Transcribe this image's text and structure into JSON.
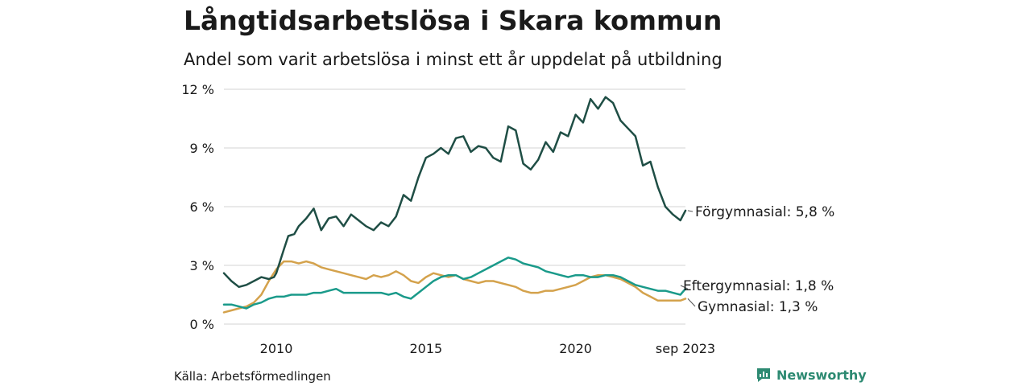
{
  "header": {
    "title": "Långtidsarbetslösa i Skara kommun",
    "subtitle": "Andel som varit arbetslösa i minst ett år uppdelat på utbildning"
  },
  "footer": {
    "source": "Källa: Arbetsförmedlingen",
    "brand": "Newsworthy"
  },
  "colors": {
    "forgymnasial": "#1f4e45",
    "eftergymnasial": "#1a9a8a",
    "gymnasial": "#d4a24c",
    "grid": "#e2e2e2"
  },
  "chart_data": {
    "type": "line",
    "title": "Långtidsarbetslösa i Skara kommun",
    "subtitle": "Andel som varit arbetslösa i minst ett år uppdelat på utbildning",
    "xlabel": "",
    "ylabel": "",
    "ylim": [
      0,
      12
    ],
    "xlim": [
      2008.25,
      2023.67
    ],
    "y_ticks": [
      0,
      3,
      6,
      9,
      12
    ],
    "y_tick_labels": [
      "0 %",
      "3 %",
      "6 %",
      "9 %",
      "12 %"
    ],
    "x_ticks": [
      2010,
      2015,
      2020,
      2023.67
    ],
    "x_tick_labels": [
      "2010",
      "2015",
      "2020",
      "sep 2023"
    ],
    "grid": true,
    "series": [
      {
        "name": "Förgymnasial",
        "end_label": "Förgymnasial: 5,8 %",
        "x": [
          2008.25,
          2008.5,
          2008.75,
          2009.0,
          2009.25,
          2009.5,
          2009.75,
          2009.92,
          2010.0,
          2010.25,
          2010.4,
          2010.6,
          2010.75,
          2011.0,
          2011.25,
          2011.5,
          2011.75,
          2012.0,
          2012.25,
          2012.5,
          2012.75,
          2013.0,
          2013.25,
          2013.5,
          2013.75,
          2014.0,
          2014.25,
          2014.5,
          2014.75,
          2015.0,
          2015.25,
          2015.5,
          2015.75,
          2016.0,
          2016.25,
          2016.5,
          2016.75,
          2017.0,
          2017.25,
          2017.5,
          2017.75,
          2018.0,
          2018.25,
          2018.5,
          2018.75,
          2019.0,
          2019.25,
          2019.5,
          2019.75,
          2020.0,
          2020.25,
          2020.5,
          2020.75,
          2021.0,
          2021.25,
          2021.5,
          2021.75,
          2022.0,
          2022.25,
          2022.5,
          2022.75,
          2023.0,
          2023.25,
          2023.5,
          2023.67
        ],
        "values": [
          2.6,
          2.2,
          1.9,
          2.0,
          2.2,
          2.4,
          2.3,
          2.4,
          2.6,
          3.8,
          4.5,
          4.6,
          5.0,
          5.4,
          5.9,
          4.8,
          5.4,
          5.5,
          5.0,
          5.6,
          5.3,
          5.0,
          4.8,
          5.2,
          5.0,
          5.5,
          6.6,
          6.3,
          7.5,
          8.5,
          8.7,
          9.0,
          8.7,
          9.5,
          9.6,
          8.8,
          9.1,
          9.0,
          8.5,
          8.3,
          10.1,
          9.9,
          8.2,
          7.9,
          8.4,
          9.3,
          8.8,
          9.8,
          9.6,
          10.7,
          10.3,
          11.5,
          11.0,
          11.6,
          11.3,
          10.4,
          10.0,
          9.6,
          8.1,
          8.3,
          7.0,
          6.0,
          5.6,
          5.3,
          5.8
        ]
      },
      {
        "name": "Eftergymnasial",
        "end_label": "Eftergymnasial: 1,8 %",
        "x": [
          2008.25,
          2008.5,
          2008.75,
          2009.0,
          2009.25,
          2009.5,
          2009.75,
          2010.0,
          2010.25,
          2010.5,
          2010.75,
          2011.0,
          2011.25,
          2011.5,
          2011.75,
          2012.0,
          2012.25,
          2012.5,
          2012.75,
          2013.0,
          2013.25,
          2013.5,
          2013.75,
          2014.0,
          2014.25,
          2014.5,
          2014.75,
          2015.0,
          2015.25,
          2015.5,
          2015.75,
          2016.0,
          2016.25,
          2016.5,
          2016.75,
          2017.0,
          2017.25,
          2017.5,
          2017.75,
          2018.0,
          2018.25,
          2018.5,
          2018.75,
          2019.0,
          2019.25,
          2019.5,
          2019.75,
          2020.0,
          2020.25,
          2020.5,
          2020.75,
          2021.0,
          2021.25,
          2021.5,
          2021.75,
          2022.0,
          2022.25,
          2022.5,
          2022.75,
          2023.0,
          2023.25,
          2023.5,
          2023.67
        ],
        "values": [
          1.0,
          1.0,
          0.9,
          0.8,
          1.0,
          1.1,
          1.3,
          1.4,
          1.4,
          1.5,
          1.5,
          1.5,
          1.6,
          1.6,
          1.7,
          1.8,
          1.6,
          1.6,
          1.6,
          1.6,
          1.6,
          1.6,
          1.5,
          1.6,
          1.4,
          1.3,
          1.6,
          1.9,
          2.2,
          2.4,
          2.5,
          2.5,
          2.3,
          2.4,
          2.6,
          2.8,
          3.0,
          3.2,
          3.4,
          3.3,
          3.1,
          3.0,
          2.9,
          2.7,
          2.6,
          2.5,
          2.4,
          2.5,
          2.5,
          2.4,
          2.4,
          2.5,
          2.5,
          2.4,
          2.2,
          2.0,
          1.9,
          1.8,
          1.7,
          1.7,
          1.6,
          1.5,
          1.8
        ]
      },
      {
        "name": "Gymnasial",
        "end_label": "Gymnasial: 1,3 %",
        "x": [
          2008.25,
          2008.5,
          2008.75,
          2009.0,
          2009.25,
          2009.5,
          2009.75,
          2010.0,
          2010.25,
          2010.5,
          2010.75,
          2011.0,
          2011.25,
          2011.5,
          2011.75,
          2012.0,
          2012.25,
          2012.5,
          2012.75,
          2013.0,
          2013.25,
          2013.5,
          2013.75,
          2014.0,
          2014.25,
          2014.5,
          2014.75,
          2015.0,
          2015.25,
          2015.5,
          2015.75,
          2016.0,
          2016.25,
          2016.5,
          2016.75,
          2017.0,
          2017.25,
          2017.5,
          2017.75,
          2018.0,
          2018.25,
          2018.5,
          2018.75,
          2019.0,
          2019.25,
          2019.5,
          2019.75,
          2020.0,
          2020.25,
          2020.5,
          2020.75,
          2021.0,
          2021.25,
          2021.5,
          2021.75,
          2022.0,
          2022.25,
          2022.5,
          2022.75,
          2023.0,
          2023.25,
          2023.5,
          2023.67
        ],
        "values": [
          0.6,
          0.7,
          0.8,
          0.9,
          1.1,
          1.5,
          2.2,
          2.8,
          3.2,
          3.2,
          3.1,
          3.2,
          3.1,
          2.9,
          2.8,
          2.7,
          2.6,
          2.5,
          2.4,
          2.3,
          2.5,
          2.4,
          2.5,
          2.7,
          2.5,
          2.2,
          2.1,
          2.4,
          2.6,
          2.5,
          2.4,
          2.5,
          2.3,
          2.2,
          2.1,
          2.2,
          2.2,
          2.1,
          2.0,
          1.9,
          1.7,
          1.6,
          1.6,
          1.7,
          1.7,
          1.8,
          1.9,
          2.0,
          2.2,
          2.4,
          2.5,
          2.5,
          2.4,
          2.3,
          2.1,
          1.9,
          1.6,
          1.4,
          1.2,
          1.2,
          1.2,
          1.2,
          1.3
        ]
      }
    ]
  }
}
